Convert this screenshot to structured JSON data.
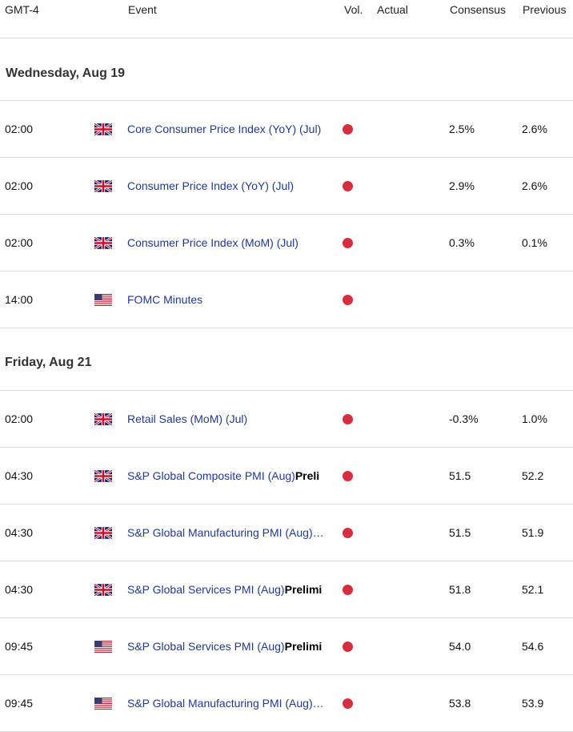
{
  "header": {
    "timezone": "GMT-4",
    "event": "Event",
    "vol": "Vol.",
    "actual": "Actual",
    "consensus": "Consensus",
    "previous": "Previous"
  },
  "days": [
    {
      "label": "Wednesday, Aug 19",
      "events": [
        {
          "time": "02:00",
          "country": "uk-flag-icon",
          "name": "Core Consumer Price Index (YoY) (Jul)",
          "bold": "",
          "volatility": "high",
          "actual": "",
          "consensus": "2.5%",
          "previous": "2.6%"
        },
        {
          "time": "02:00",
          "country": "uk-flag-icon",
          "name": "Consumer Price Index (YoY) (Jul)",
          "bold": "",
          "volatility": "high",
          "actual": "",
          "consensus": "2.9%",
          "previous": "2.6%"
        },
        {
          "time": "02:00",
          "country": "uk-flag-icon",
          "name": "Consumer Price Index (MoM) (Jul)",
          "bold": "",
          "volatility": "high",
          "actual": "",
          "consensus": "0.3%",
          "previous": "0.1%"
        },
        {
          "time": "14:00",
          "country": "us-flag-icon",
          "name": "FOMC Minutes",
          "bold": "",
          "volatility": "high",
          "actual": "",
          "consensus": "",
          "previous": ""
        }
      ]
    },
    {
      "label": "Friday, Aug 21",
      "events": [
        {
          "time": "02:00",
          "country": "uk-flag-icon",
          "name": "Retail Sales (MoM) (Jul)",
          "bold": "",
          "volatility": "high",
          "actual": "",
          "consensus": "-0.3%",
          "previous": "1.0%"
        },
        {
          "time": "04:30",
          "country": "uk-flag-icon",
          "name": "S&P Global Composite PMI (Aug)",
          "bold": "Preli",
          "volatility": "high",
          "actual": "",
          "consensus": "51.5",
          "previous": "52.2"
        },
        {
          "time": "04:30",
          "country": "uk-flag-icon",
          "name": "S&P Global Manufacturing PMI (Aug)…",
          "bold": "",
          "volatility": "high",
          "actual": "",
          "consensus": "51.5",
          "previous": "51.9"
        },
        {
          "time": "04:30",
          "country": "uk-flag-icon",
          "name": "S&P Global Services PMI (Aug)",
          "bold": "Prelimi",
          "volatility": "high",
          "actual": "",
          "consensus": "51.8",
          "previous": "52.1"
        },
        {
          "time": "09:45",
          "country": "us-flag-icon",
          "name": "S&P Global Services PMI (Aug)",
          "bold": "Prelimi",
          "volatility": "high",
          "actual": "",
          "consensus": "54.0",
          "previous": "54.6"
        },
        {
          "time": "09:45",
          "country": "us-flag-icon",
          "name": "S&P Global Manufacturing PMI (Aug)…",
          "bold": "",
          "volatility": "high",
          "actual": "",
          "consensus": "53.8",
          "previous": "53.9"
        }
      ]
    }
  ],
  "colors": {
    "volatility_high": "#d62d3f",
    "event_link": "#1f3a93",
    "divider": "#dcdcdc"
  }
}
